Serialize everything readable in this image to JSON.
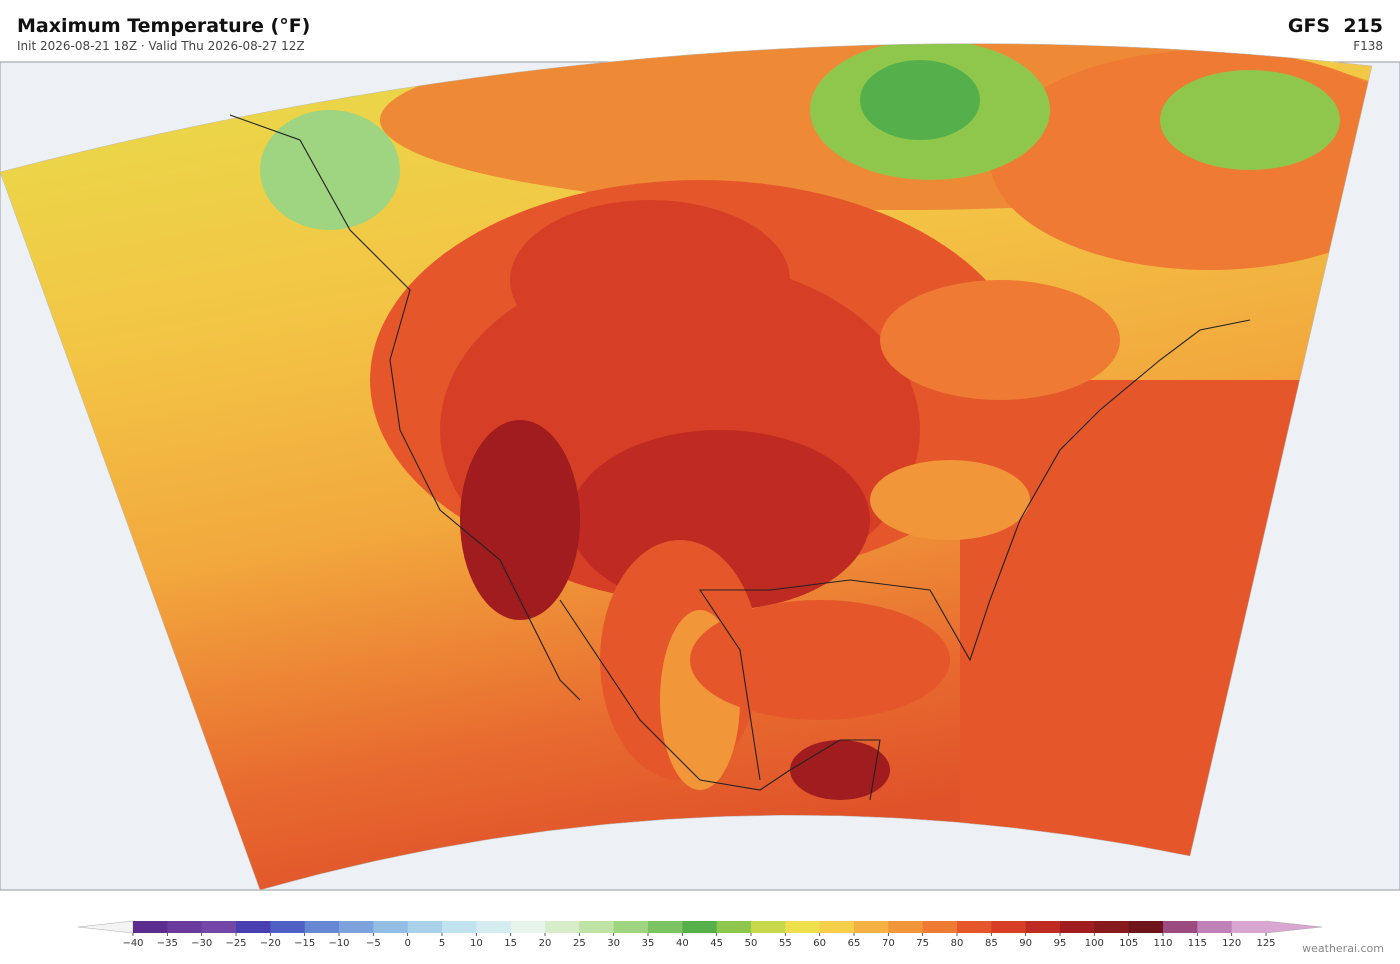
{
  "header": {
    "title": "Maximum Temperature  (°F)",
    "subtitle": "Init 2026-08-21 18Z  ·  Valid Thu 2026-08-27 12Z",
    "model": "GFS  215",
    "forecast_hour": "F138"
  },
  "colorbar": {
    "ticks": [
      {
        "value": -40,
        "label": "−40"
      },
      {
        "value": -35,
        "label": "−35"
      },
      {
        "value": -30,
        "label": "−30"
      },
      {
        "value": -25,
        "label": "−25"
      },
      {
        "value": -20,
        "label": "−20"
      },
      {
        "value": -15,
        "label": "−15"
      },
      {
        "value": -10,
        "label": "−10"
      },
      {
        "value": -5,
        "label": "−5"
      },
      0,
      5,
      10,
      15,
      20,
      25,
      30,
      35,
      40,
      45,
      50,
      55,
      60,
      65,
      70,
      75,
      80,
      85,
      90,
      95,
      100,
      105,
      110,
      115,
      120,
      125
    ],
    "colors": [
      "#5b2d8e",
      "#6a3a9c",
      "#7247a8",
      "#4a3fb0",
      "#4f5fc4",
      "#6688d4",
      "#7ea3dc",
      "#93bde3",
      "#a9d2e8",
      "#c1e3ef",
      "#d5ecf1",
      "#e6f4ec",
      "#d7ecc8",
      "#bee3a5",
      "#9fd480",
      "#7cc463",
      "#55b04b",
      "#8fc74c",
      "#c7d84a",
      "#eee04a",
      "#f5cf4a",
      "#f5b142",
      "#f2963a",
      "#ee7a33",
      "#e5572a",
      "#d63f25",
      "#bf2a22",
      "#a01c1e",
      "#871a1c",
      "#6e141a",
      "#9b4b80",
      "#c080b8",
      "#d9a6d2"
    ],
    "under_color": "#f4f4f4",
    "over_color": "#d9a6d2"
  },
  "footer": {
    "credit": "weatherai.com"
  }
}
